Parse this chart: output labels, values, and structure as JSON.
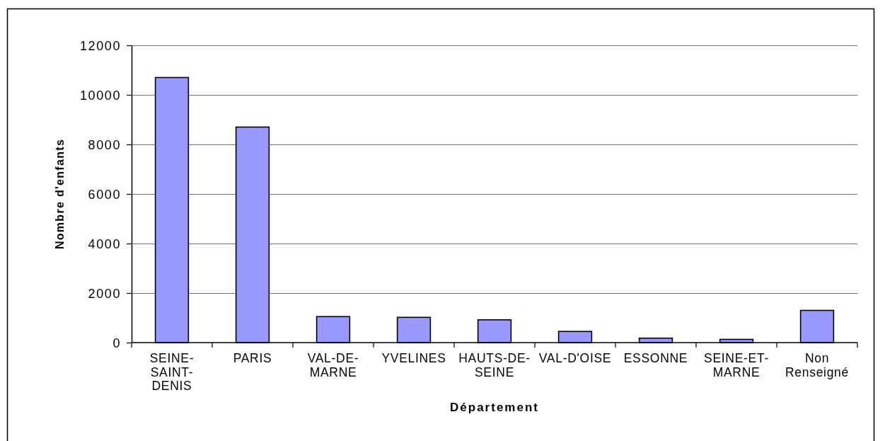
{
  "chart_data": {
    "type": "bar",
    "xlabel": "Département",
    "ylabel": "Nombre d'enfants",
    "categories": [
      "SEINE-SAINT-DENIS",
      "PARIS",
      "VAL-DE-MARNE",
      "YVELINES",
      "HAUTS-DE-SEINE",
      "VAL-D'OISE",
      "ESSONNE",
      "SEINE-ET-MARNE",
      "Non Renseigné"
    ],
    "values": [
      10700,
      8700,
      1050,
      1020,
      920,
      450,
      180,
      130,
      1300
    ],
    "color": "#9999ff",
    "ylim": [
      0,
      12000
    ],
    "yticks": [
      0,
      2000,
      4000,
      6000,
      8000,
      10000,
      12000
    ],
    "grid": "y"
  }
}
